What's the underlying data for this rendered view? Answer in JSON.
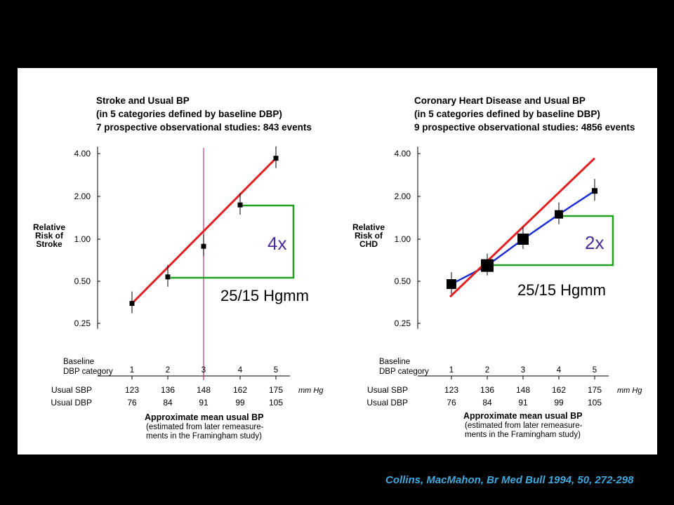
{
  "citation": "Collins, MacMahon, Br Med Bull 1994, 50, 272-298",
  "chart_data": [
    {
      "type": "scatter",
      "title_lines": [
        "Stroke and Usual BP",
        "(in 5 categories defined by baseline DBP)",
        "7 prospective observational studies: 843 events"
      ],
      "ylabel_lines": [
        "Relative",
        "Risk of",
        "Stroke"
      ],
      "yscale": "log",
      "yticks": [
        "4.00",
        "2.00",
        "1.00",
        "0.50",
        "0.25"
      ],
      "category_row_label_lines": [
        "Baseline",
        "DBP category"
      ],
      "categories": [
        "1",
        "2",
        "3",
        "4",
        "5"
      ],
      "sbp_label": "Usual SBP",
      "dbp_label": "Usual DBP",
      "sbp": [
        "123",
        "136",
        "148",
        "162",
        "175"
      ],
      "dbp": [
        "76",
        "84",
        "91",
        "99",
        "105"
      ],
      "unit": "mm Hg",
      "xlabel": "Approximate mean usual BP",
      "xnote_lines": [
        "(estimated from later remeasure-",
        "ments in the Framingham study)"
      ],
      "points": [
        {
          "category": 1,
          "rr": 0.35
        },
        {
          "category": 2,
          "rr": 0.54
        },
        {
          "category": 3,
          "rr": 0.89
        },
        {
          "category": 4,
          "rr": 1.75
        },
        {
          "category": 5,
          "rr": 3.75
        }
      ],
      "fit_line": {
        "color": "#e02020",
        "from": {
          "category": 1,
          "rr": 0.35
        },
        "to": {
          "category": 5,
          "rr": 3.75
        }
      },
      "reference_line": {
        "category": 3,
        "color": "#c0307a"
      },
      "ratio_label": "4x",
      "difference_label": "25/15 Hgmm",
      "bracket_color": "#22a022"
    },
    {
      "type": "scatter",
      "title_lines": [
        "Coronary Heart Disease and Usual BP",
        "(in 5 categories defined by baseline DBP)",
        "9 prospective observational studies: 4856 events"
      ],
      "ylabel_lines": [
        "Relative",
        "Risk of",
        "CHD"
      ],
      "yscale": "log",
      "yticks": [
        "4.00",
        "2.00",
        "1.00",
        "0.50",
        "0.25"
      ],
      "category_row_label_lines": [
        "Baseline",
        "DBP category"
      ],
      "categories": [
        "1",
        "2",
        "3",
        "4",
        "5"
      ],
      "sbp_label": "Usual SBP",
      "dbp_label": "Usual DBP",
      "sbp": [
        "123",
        "136",
        "148",
        "162",
        "175"
      ],
      "dbp": [
        "76",
        "84",
        "91",
        "99",
        "105"
      ],
      "unit": "mm Hg",
      "xlabel": "Approximate mean usual BP",
      "xnote_lines": [
        "(estimated from later remeasure-",
        "ments in the Framingham study)"
      ],
      "points": [
        {
          "category": 1,
          "rr": 0.48
        },
        {
          "category": 2,
          "rr": 0.65
        },
        {
          "category": 3,
          "rr": 1.0
        },
        {
          "category": 4,
          "rr": 1.5
        },
        {
          "category": 5,
          "rr": 2.2
        }
      ],
      "fit_line": {
        "color": "#e02020",
        "from": {
          "category": 1,
          "rr": 0.39
        },
        "to": {
          "category": 5,
          "rr": 3.75
        }
      },
      "trend_line": {
        "color": "#1a2fd0"
      },
      "ratio_label": "2x",
      "difference_label": "25/15 Hgmm",
      "bracket_color": "#22a022"
    }
  ]
}
